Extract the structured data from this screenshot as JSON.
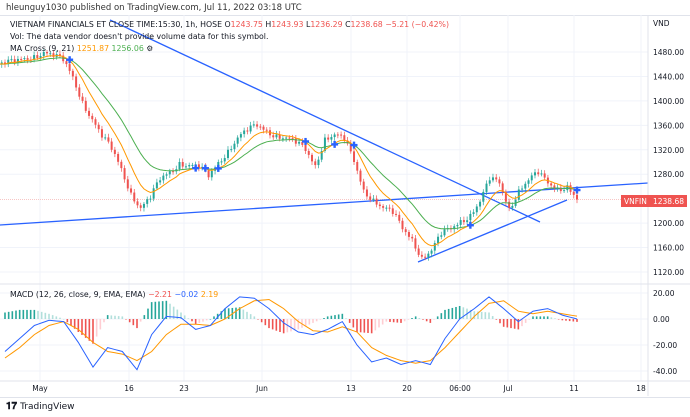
{
  "byline": "hleunguy1030 published on TradingView.com, Jul 11, 2022 03:18 UTC",
  "header": {
    "symbol_line": "VIETNAM FINANCIALS ET CLOSE TIME:15:30, 1h, HOSE",
    "o_label": "O",
    "o": "1243.75",
    "h_label": "H",
    "h": "1243.93",
    "l_label": "L",
    "l": "1236.29",
    "c_label": "C",
    "c": "1238.68",
    "change": "−5.21 (−0.42%)",
    "vol_note": "Vol: The data vendor doesn't provide volume data for this symbol.",
    "ma_label": "MA Cross (9, 21)",
    "ma_fast": "1251.87",
    "ma_slow": "1256.06"
  },
  "macd_legend": {
    "label": "MACD (12, 26, close, 9, EMA, EMA)",
    "hist": "−2.21",
    "macd": "−0.02",
    "signal": "2.19"
  },
  "price_axis": {
    "unit": "VND",
    "ticks": [
      "1480.00",
      "1440.00",
      "1400.00",
      "1360.00",
      "1320.00",
      "1280.00",
      "1200.00",
      "1160.00",
      "1120.00"
    ]
  },
  "price_tag": {
    "symbol": "VNFIN",
    "value": "1238.68"
  },
  "macd_axis": {
    "ticks": [
      "20.00",
      "0.00",
      "-20.00",
      "-40.00"
    ]
  },
  "time_axis": {
    "ticks": [
      "May",
      "16",
      "23",
      "Jun",
      "13",
      "20",
      "06:00",
      "Jul",
      "11",
      "18"
    ]
  },
  "footer": {
    "brand": "TradingView"
  },
  "colors": {
    "up": "#26a69a",
    "down": "#ef5350",
    "ma_fast": "#ff9800",
    "ma_slow": "#4caf50",
    "trendline": "#2962ff",
    "macd": "#2962ff",
    "signal": "#ff9800"
  },
  "chart_data": {
    "type": "candlestick",
    "price_range": [
      1100,
      1520
    ],
    "closes": [
      1460,
      1462,
      1470,
      1475,
      1480,
      1472,
      1465,
      1440,
      1400,
      1370,
      1340,
      1320,
      1290,
      1250,
      1225,
      1240,
      1270,
      1285,
      1300,
      1295,
      1290,
      1275,
      1300,
      1320,
      1340,
      1350,
      1358,
      1352,
      1345,
      1340,
      1330,
      1318,
      1295,
      1340,
      1345,
      1335,
      1300,
      1255,
      1240,
      1225,
      1215,
      1190,
      1175,
      1145,
      1155,
      1180,
      1190,
      1205,
      1215,
      1235,
      1270,
      1265,
      1225,
      1255,
      1270,
      1280,
      1265,
      1258,
      1262,
      1238.68
    ],
    "macd": [
      -25,
      -15,
      -5,
      -1,
      -2,
      -18,
      -37,
      -22,
      -25,
      -39,
      -12,
      2,
      1,
      -8,
      -5,
      8,
      17,
      16,
      8,
      -3,
      -10,
      -12,
      -8,
      -2,
      -20,
      -33,
      -30,
      -35,
      -32,
      -35,
      -15,
      0,
      8,
      17,
      8,
      -2,
      6,
      8,
      3,
      -0.02
    ],
    "signal": [
      -30,
      -22,
      -12,
      -5,
      -2,
      -8,
      -18,
      -25,
      -27,
      -32,
      -25,
      -12,
      -4,
      -4,
      -5,
      0,
      8,
      14,
      15,
      8,
      -2,
      -9,
      -10,
      -6,
      -10,
      -22,
      -28,
      -32,
      -34,
      -32,
      -22,
      -10,
      2,
      12,
      14,
      6,
      4,
      6,
      4,
      2.19
    ],
    "macd_range": [
      -45,
      25
    ]
  }
}
